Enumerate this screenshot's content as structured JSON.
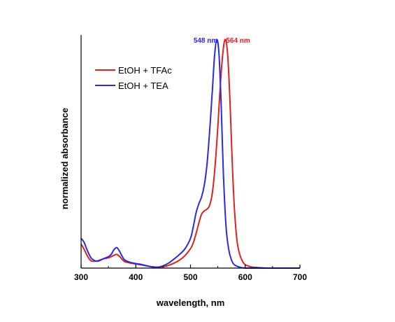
{
  "chart_data": {
    "type": "line",
    "title": "",
    "xlabel": "wavelength, nm",
    "ylabel": "normalized absorbance",
    "xlim": [
      300,
      700
    ],
    "ylim": [
      0,
      1.02
    ],
    "xticks": [
      "300",
      "400",
      "500",
      "600",
      "700"
    ],
    "grid": false,
    "legend": "top-left",
    "series": [
      {
        "name": "EtOH + TFAc",
        "color": "#e01f1f",
        "x": [
          300,
          305,
          310,
          315,
          320,
          330,
          340,
          350,
          355,
          360,
          365,
          370,
          375,
          380,
          390,
          400,
          410,
          420,
          430,
          440,
          450,
          460,
          470,
          480,
          490,
          500,
          505,
          510,
          515,
          520,
          525,
          530,
          535,
          540,
          545,
          550,
          555,
          560,
          564,
          568,
          572,
          576,
          580,
          585,
          590,
          595,
          600,
          610,
          620,
          640,
          660,
          700
        ],
        "y": [
          0.105,
          0.085,
          0.06,
          0.04,
          0.03,
          0.032,
          0.04,
          0.045,
          0.05,
          0.056,
          0.06,
          0.052,
          0.038,
          0.028,
          0.022,
          0.018,
          0.014,
          0.01,
          0.006,
          0.004,
          0.006,
          0.012,
          0.022,
          0.035,
          0.055,
          0.085,
          0.11,
          0.15,
          0.195,
          0.235,
          0.25,
          0.258,
          0.275,
          0.33,
          0.45,
          0.62,
          0.82,
          0.96,
          1.0,
          0.93,
          0.74,
          0.48,
          0.27,
          0.12,
          0.06,
          0.03,
          0.015,
          0.006,
          0.003,
          0.0,
          0.0,
          0.0
        ]
      },
      {
        "name": "EtOH + TEA",
        "color": "#2a2ae0",
        "x": [
          300,
          305,
          310,
          315,
          320,
          330,
          340,
          350,
          355,
          360,
          365,
          370,
          375,
          380,
          390,
          400,
          410,
          420,
          430,
          440,
          450,
          460,
          470,
          480,
          490,
          500,
          505,
          510,
          515,
          520,
          525,
          530,
          535,
          540,
          544,
          548,
          552,
          556,
          560,
          565,
          570,
          575,
          580,
          590,
          600,
          620,
          640,
          700
        ],
        "y": [
          0.13,
          0.115,
          0.085,
          0.058,
          0.04,
          0.03,
          0.04,
          0.05,
          0.06,
          0.08,
          0.09,
          0.075,
          0.052,
          0.035,
          0.025,
          0.02,
          0.016,
          0.01,
          0.005,
          0.004,
          0.01,
          0.022,
          0.04,
          0.06,
          0.085,
          0.13,
          0.18,
          0.24,
          0.28,
          0.31,
          0.36,
          0.45,
          0.6,
          0.78,
          0.93,
          1.0,
          0.94,
          0.72,
          0.42,
          0.18,
          0.08,
          0.035,
          0.015,
          0.004,
          0.0,
          0.0,
          0.0,
          0.0
        ]
      }
    ],
    "annotations": [
      {
        "text": "548 nm",
        "x": 548,
        "color": "#2a2ae0"
      },
      {
        "text": "564 nm",
        "x": 564,
        "color": "#e01f1f"
      }
    ]
  }
}
